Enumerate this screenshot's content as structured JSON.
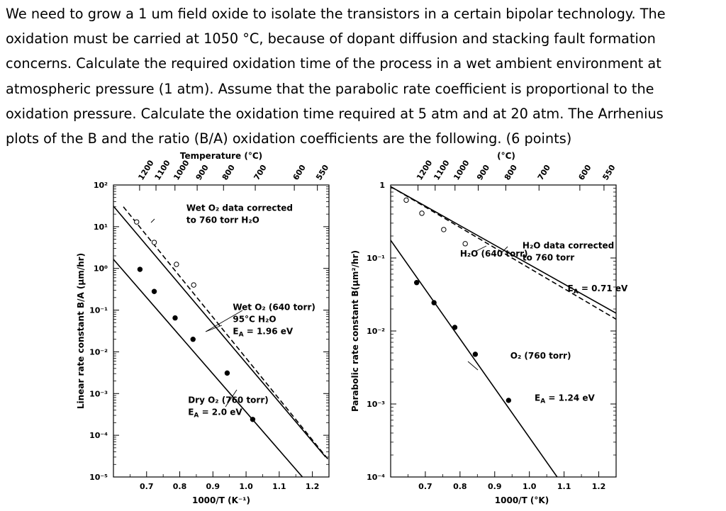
{
  "problem": {
    "lines": [
      "We need to grow a 1 um field oxide to isolate the transistors in a certain bipolar technology. The",
      "oxidation must be carried at 1050 °C, because of dopant diffusion and stacking fault formation",
      "concerns. Calculate the required oxidation time of the process in a wet ambient environment at",
      "atmospheric pressure (1 atm). Assume that the parabolic rate coefficient is proportional to the",
      "oxidation pressure. Calculate the oxidation time required at 5 atm and at 20 atm. The Arrhenius",
      "plots of the B and the ratio (B/A) oxidation coefficients are the following. (6 points)"
    ]
  },
  "chart_data": [
    {
      "type": "line",
      "log_y": true,
      "xlabel": "1000/T (K⁻¹)",
      "ylabel": "Linear rate constant B/A (µm/hr)",
      "top_axis_label": "Temperature (°C)",
      "xlim": [
        0.6,
        1.25
      ],
      "ylim": [
        1e-05,
        100
      ],
      "x_ticks": [
        "0.7",
        "0.8",
        "0.9",
        "1.0",
        "1.1",
        "1.2"
      ],
      "x_tick_values": [
        0.7,
        0.8,
        0.9,
        1.0,
        1.1,
        1.2
      ],
      "y_ticks": [
        "10²",
        "10¹",
        "10⁰",
        "10⁻¹",
        "10⁻²",
        "10⁻³",
        "10⁻⁴",
        "10⁻⁵"
      ],
      "y_tick_values": [
        100,
        10,
        1,
        0.1,
        0.01,
        0.001,
        0.0001,
        1e-05
      ],
      "temp_ticks": [
        "1200",
        "1100",
        "1000",
        "900",
        "800",
        "700",
        "600",
        "550"
      ],
      "temp_tick_values": [
        1200,
        1100,
        1000,
        900,
        800,
        700,
        600,
        550
      ],
      "series": [
        {
          "style": "solid",
          "x": [
            0.6,
            1.24
          ],
          "y": [
            31,
            3e-05
          ]
        },
        {
          "style": "dashed",
          "x": [
            0.63,
            1.25
          ],
          "y": [
            30,
            2.5e-05
          ]
        },
        {
          "style": "solid",
          "markers": "filled",
          "x": [
            0.6,
            1.17
          ],
          "y": [
            1.65,
            1e-05
          ],
          "points_x": [
            0.68,
            0.723,
            0.786,
            0.84,
            0.943,
            1.02
          ],
          "points_y": [
            0.95,
            0.28,
            0.065,
            0.02,
            0.0031,
            0.00024
          ]
        },
        {
          "markers": "open",
          "points_x": [
            0.67,
            0.723,
            0.79,
            0.842
          ],
          "points_y": [
            13,
            4.2,
            1.25,
            0.4
          ]
        }
      ],
      "annotations": [
        {
          "lines": [
            "Wet O₂ data corrected",
            "to 760 torr H₂O"
          ],
          "x": 0.82,
          "y": 24
        },
        {
          "lines": [
            "Wet O₂ (640 torr)",
            "95°C H₂O",
            "E_A = 1.96 eV"
          ],
          "x": 0.96,
          "y": 0.1
        },
        {
          "lines": [
            "Dry O₂ (760 torr)",
            "E_A = 2.0 eV"
          ],
          "x": 0.825,
          "y": 0.0006
        }
      ]
    },
    {
      "type": "line",
      "log_y": true,
      "xlabel": "1000/T (°K)",
      "ylabel": "Parabolic rate constant B(µm²/hr)",
      "top_axis_label": "(°C)",
      "xlim": [
        0.6,
        1.25
      ],
      "ylim": [
        0.0001,
        1
      ],
      "x_ticks": [
        "0.7",
        "0.8",
        "0.9",
        "1.0",
        "1.1",
        "1.2"
      ],
      "x_tick_values": [
        0.7,
        0.8,
        0.9,
        1.0,
        1.1,
        1.2
      ],
      "y_ticks": [
        "1",
        "10⁻¹",
        "10⁻²",
        "10⁻³",
        "10⁻⁴"
      ],
      "y_tick_values": [
        1,
        0.1,
        0.01,
        0.001,
        0.0001
      ],
      "temp_ticks": [
        "1200",
        "1100",
        "1000",
        "900",
        "800",
        "700",
        "600",
        "550"
      ],
      "temp_tick_values": [
        1200,
        1100,
        1000,
        900,
        800,
        700,
        600,
        550
      ],
      "series": [
        {
          "style": "solid",
          "x": [
            0.6,
            1.25
          ],
          "y": [
            0.95,
            0.0175
          ]
        },
        {
          "style": "dashed",
          "x": [
            0.6,
            1.25
          ],
          "y": [
            0.95,
            0.0145
          ]
        },
        {
          "style": "solid",
          "markers": "filled",
          "x": [
            0.6,
            1.08
          ],
          "y": [
            0.175,
            0.0001
          ],
          "points_x": [
            0.675,
            0.725,
            0.785,
            0.844,
            0.94
          ],
          "points_y": [
            0.046,
            0.0244,
            0.0112,
            0.0048,
            0.00112
          ]
        },
        {
          "markers": "open",
          "points_x": [
            0.645,
            0.69,
            0.753,
            0.815
          ],
          "points_y": [
            0.62,
            0.41,
            0.245,
            0.157
          ]
        }
      ],
      "annotations": [
        {
          "lines": [
            "H₂O (640 torr)"
          ],
          "x": 0.8,
          "y": 0.105
        },
        {
          "lines": [
            "H₂O data corrected",
            "to 760 torr"
          ],
          "x": 0.98,
          "y": 0.135
        },
        {
          "lines": [
            "E_A = 0.71 eV"
          ],
          "x": 1.11,
          "y": 0.035
        },
        {
          "lines": [
            "O₂ (760 torr)"
          ],
          "x": 0.945,
          "y": 0.0042
        },
        {
          "lines": [
            "E_A = 1.24 eV"
          ],
          "x": 1.015,
          "y": 0.0011
        }
      ]
    }
  ]
}
